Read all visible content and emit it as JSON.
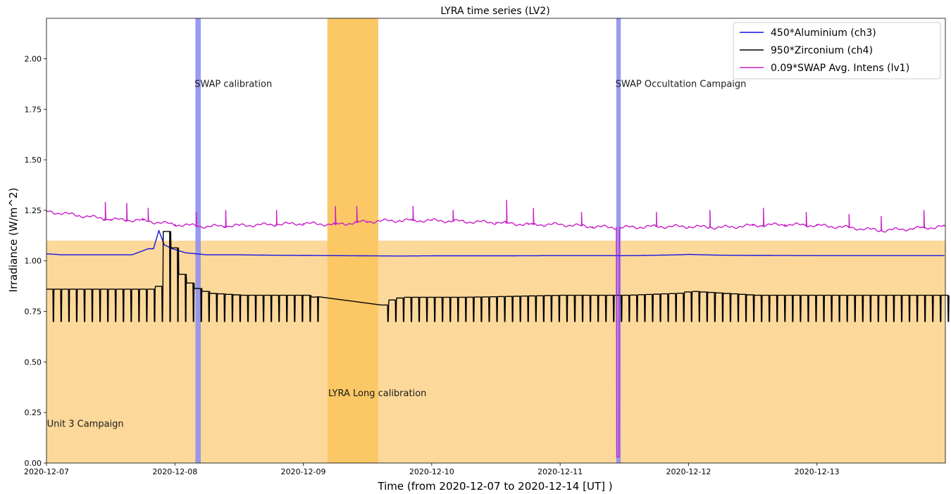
{
  "chart_data": {
    "type": "line",
    "title": "LYRA time series (LV2)",
    "xlabel": "Time (from 2020-12-07 to 2020-12-14 [UT] )",
    "ylabel": "Irradiance (W/m^2)",
    "xlim": [
      "2020-12-07T00:00",
      "2020-12-14T00:00"
    ],
    "ylim": [
      0,
      2.2
    ],
    "x_ticks": [
      "2020-12-07",
      "2020-12-08",
      "2020-12-09",
      "2020-12-10",
      "2020-12-11",
      "2020-12-12",
      "2020-12-13"
    ],
    "y_ticks": [
      "0.00",
      "0.25",
      "0.50",
      "0.75",
      "1.00",
      "1.25",
      "1.50",
      "1.75",
      "2.00"
    ],
    "grid": false,
    "legend_position": "top-right",
    "regions": [
      {
        "kind": "campaign-band",
        "x_start": "2020-12-07T00:00",
        "x_end": "2020-12-14T00:00",
        "y_start": 0,
        "y_end": 1.1,
        "color": "#fcd99b",
        "label": "Unit 3 Campaign",
        "label_x": "2020-12-07T00:05",
        "label_y": 0.18
      },
      {
        "kind": "vertical-band",
        "x_start": "2020-12-09T04:30",
        "x_end": "2020-12-09T14:00",
        "color": "#fcc865",
        "label": "LYRA Long calibration",
        "label_x": "2020-12-09T04:40",
        "label_y": 0.33
      },
      {
        "kind": "vertical-line",
        "x_start": "2020-12-08T03:50",
        "x_end": "2020-12-08T04:50",
        "color": "#8e8ff0",
        "label": "SWAP calibration",
        "label_x": "2020-12-08T03:40",
        "label_y": 1.86
      },
      {
        "kind": "vertical-line",
        "x_start": "2020-12-11T10:30",
        "x_end": "2020-12-11T11:20",
        "color": "#8e8ff0",
        "label": "SWAP Occultation Campaign",
        "label_x": "2020-12-11T10:20",
        "label_y": 1.86
      }
    ],
    "series": [
      {
        "name": "450*Aluminium (ch3)",
        "color": "#1414e6",
        "points": [
          [
            "2020-12-07T00:00",
            1.035
          ],
          [
            "2020-12-07T03:00",
            1.03
          ],
          [
            "2020-12-07T06:00",
            1.03
          ],
          [
            "2020-12-07T09:00",
            1.03
          ],
          [
            "2020-12-07T12:00",
            1.03
          ],
          [
            "2020-12-07T16:00",
            1.03
          ],
          [
            "2020-12-07T19:00",
            1.06
          ],
          [
            "2020-12-07T20:00",
            1.06
          ],
          [
            "2020-12-07T21:00",
            1.15
          ],
          [
            "2020-12-07T22:00",
            1.08
          ],
          [
            "2020-12-07T23:30",
            1.06
          ],
          [
            "2020-12-08T02:00",
            1.04
          ],
          [
            "2020-12-08T06:00",
            1.03
          ],
          [
            "2020-12-08T12:00",
            1.03
          ],
          [
            "2020-12-08T18:00",
            1.028
          ],
          [
            "2020-12-09T00:00",
            1.027
          ],
          [
            "2020-12-09T06:00",
            1.026
          ],
          [
            "2020-12-09T12:00",
            1.025
          ],
          [
            "2020-12-09T18:00",
            1.024
          ],
          [
            "2020-12-10T00:00",
            1.025
          ],
          [
            "2020-12-10T12:00",
            1.025
          ],
          [
            "2020-12-11T00:00",
            1.026
          ],
          [
            "2020-12-11T10:00",
            1.026
          ],
          [
            "2020-12-11T14:00",
            1.026
          ],
          [
            "2020-12-11T22:00",
            1.03
          ],
          [
            "2020-12-12T00:00",
            1.032
          ],
          [
            "2020-12-12T06:00",
            1.028
          ],
          [
            "2020-12-12T12:00",
            1.027
          ],
          [
            "2020-12-13T00:00",
            1.026
          ],
          [
            "2020-12-13T12:00",
            1.026
          ],
          [
            "2020-12-13T23:50",
            1.026
          ]
        ]
      },
      {
        "name": "950*Zirconium (ch4)",
        "color": "#000000",
        "points": [
          [
            "2020-12-07T00:00",
            0.86
          ],
          [
            "2020-12-07T20:00",
            0.86
          ],
          [
            "2020-12-07T21:00",
            0.9
          ],
          [
            "2020-12-07T22:00",
            1.2
          ],
          [
            "2020-12-07T23:00",
            1.1
          ],
          [
            "2020-12-08T00:00",
            0.97
          ],
          [
            "2020-12-08T01:00",
            0.92
          ],
          [
            "2020-12-08T03:00",
            0.87
          ],
          [
            "2020-12-08T06:00",
            0.84
          ],
          [
            "2020-12-08T12:00",
            0.83
          ],
          [
            "2020-12-09T00:00",
            0.83
          ],
          [
            "2020-12-09T02:00",
            0.82
          ],
          [
            "2020-12-09T14:00",
            0.76
          ],
          [
            "2020-12-09T15:00",
            0.8
          ],
          [
            "2020-12-09T18:00",
            0.82
          ],
          [
            "2020-12-10T06:00",
            0.82
          ],
          [
            "2020-12-11T00:00",
            0.83
          ],
          [
            "2020-12-11T12:00",
            0.83
          ],
          [
            "2020-12-11T22:00",
            0.84
          ],
          [
            "2020-12-12T00:00",
            0.85
          ],
          [
            "2020-12-12T12:00",
            0.83
          ],
          [
            "2020-12-13T00:00",
            0.83
          ],
          [
            "2020-12-13T23:50",
            0.83
          ]
        ],
        "oscillation": {
          "trough": 0.7,
          "cycles_per_day": 16.5,
          "gap": [
            "2020-12-09T02:00",
            "2020-12-09T14:00"
          ]
        }
      },
      {
        "name": "0.09*SWAP Avg. Intens (lv1)",
        "color": "#c81ec8",
        "points": [
          [
            "2020-12-07T00:00",
            1.245
          ],
          [
            "2020-12-07T06:00",
            1.225
          ],
          [
            "2020-12-07T12:00",
            1.205
          ],
          [
            "2020-12-07T18:00",
            1.2
          ],
          [
            "2020-12-08T00:00",
            1.18
          ],
          [
            "2020-12-08T06:00",
            1.17
          ],
          [
            "2020-12-08T12:00",
            1.175
          ],
          [
            "2020-12-08T18:00",
            1.18
          ],
          [
            "2020-12-09T00:00",
            1.185
          ],
          [
            "2020-12-09T06:00",
            1.18
          ],
          [
            "2020-12-09T12:00",
            1.195
          ],
          [
            "2020-12-09T18:00",
            1.2
          ],
          [
            "2020-12-10T00:00",
            1.2
          ],
          [
            "2020-12-10T06:00",
            1.195
          ],
          [
            "2020-12-10T12:00",
            1.19
          ],
          [
            "2020-12-10T18:00",
            1.18
          ],
          [
            "2020-12-11T00:00",
            1.18
          ],
          [
            "2020-12-11T06:00",
            1.17
          ],
          [
            "2020-12-11T10:30",
            1.165
          ],
          [
            "2020-12-11T10:35",
            0.03
          ],
          [
            "2020-12-11T11:00",
            0.03
          ],
          [
            "2020-12-11T11:05",
            1.165
          ],
          [
            "2020-12-11T18:00",
            1.17
          ],
          [
            "2020-12-12T00:00",
            1.17
          ],
          [
            "2020-12-12T06:00",
            1.165
          ],
          [
            "2020-12-12T12:00",
            1.175
          ],
          [
            "2020-12-12T18:00",
            1.18
          ],
          [
            "2020-12-13T00:00",
            1.175
          ],
          [
            "2020-12-13T06:00",
            1.165
          ],
          [
            "2020-12-13T12:00",
            1.15
          ],
          [
            "2020-12-13T18:00",
            1.16
          ],
          [
            "2020-12-13T23:50",
            1.17
          ]
        ],
        "spikes": [
          [
            "2020-12-07T11:00",
            1.29
          ],
          [
            "2020-12-07T15:00",
            1.285
          ],
          [
            "2020-12-07T19:00",
            1.26
          ],
          [
            "2020-12-08T04:00",
            1.24
          ],
          [
            "2020-12-08T09:30",
            1.25
          ],
          [
            "2020-12-08T19:00",
            1.25
          ],
          [
            "2020-12-09T06:00",
            1.27
          ],
          [
            "2020-12-09T10:00",
            1.27
          ],
          [
            "2020-12-09T20:30",
            1.27
          ],
          [
            "2020-12-10T04:00",
            1.25
          ],
          [
            "2020-12-10T14:00",
            1.3
          ],
          [
            "2020-12-10T19:00",
            1.26
          ],
          [
            "2020-12-11T04:00",
            1.24
          ],
          [
            "2020-12-11T18:00",
            1.24
          ],
          [
            "2020-12-12T04:00",
            1.25
          ],
          [
            "2020-12-12T14:00",
            1.26
          ],
          [
            "2020-12-12T22:00",
            1.24
          ],
          [
            "2020-12-13T06:00",
            1.23
          ],
          [
            "2020-12-13T12:00",
            1.22
          ],
          [
            "2020-12-13T20:00",
            1.25
          ]
        ]
      }
    ]
  }
}
